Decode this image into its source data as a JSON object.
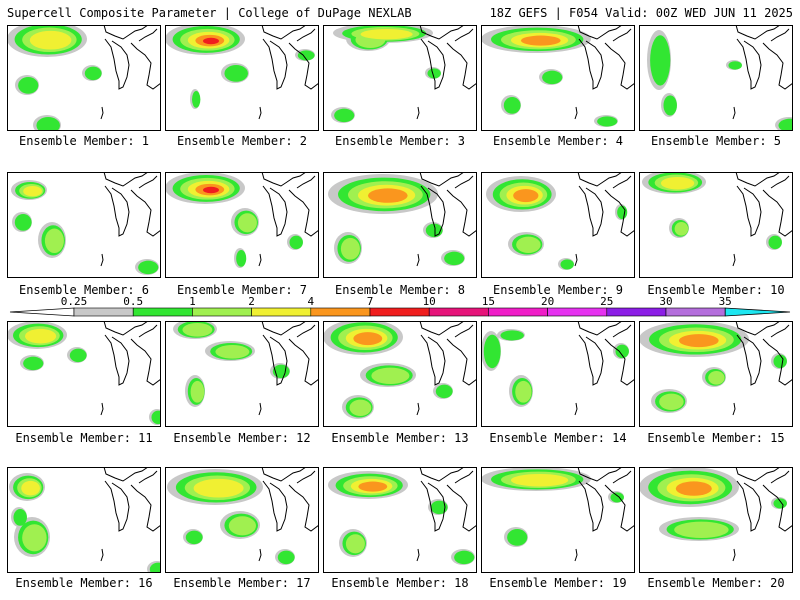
{
  "header": {
    "left": "Supercell Composite Parameter | College of DuPage NEXLAB",
    "right": "18Z GEFS | F054 Valid: 00Z WED JUN 11 2025"
  },
  "members": [
    "Ensemble Member: 1",
    "Ensemble Member: 2",
    "Ensemble Member: 3",
    "Ensemble Member: 4",
    "Ensemble Member: 5",
    "Ensemble Member: 6",
    "Ensemble Member: 7",
    "Ensemble Member: 8",
    "Ensemble Member: 9",
    "Ensemble Member: 10",
    "Ensemble Member: 11",
    "Ensemble Member: 12",
    "Ensemble Member: 13",
    "Ensemble Member: 14",
    "Ensemble Member: 15",
    "Ensemble Member: 16",
    "Ensemble Member: 17",
    "Ensemble Member: 18",
    "Ensemble Member: 19",
    "Ensemble Member: 20"
  ],
  "legend": {
    "ticks": [
      "0.25",
      "0.5",
      "1",
      "2",
      "4",
      "7",
      "10",
      "15",
      "20",
      "25",
      "30",
      "35"
    ],
    "colors": {
      "below": "#ffffff",
      "c0": "#c8c8c8",
      "c1": "#32e632",
      "c2": "#a0f050",
      "c3": "#f0f032",
      "c4": "#fa961e",
      "c5": "#f01e1e",
      "c6": "#e6147a",
      "c7": "#f01ec8",
      "c8": "#e632f0",
      "c9": "#8c1ee6",
      "c10": "#b46edc",
      "above": "#1ee6f0"
    }
  },
  "coastline_color": "#000000"
}
